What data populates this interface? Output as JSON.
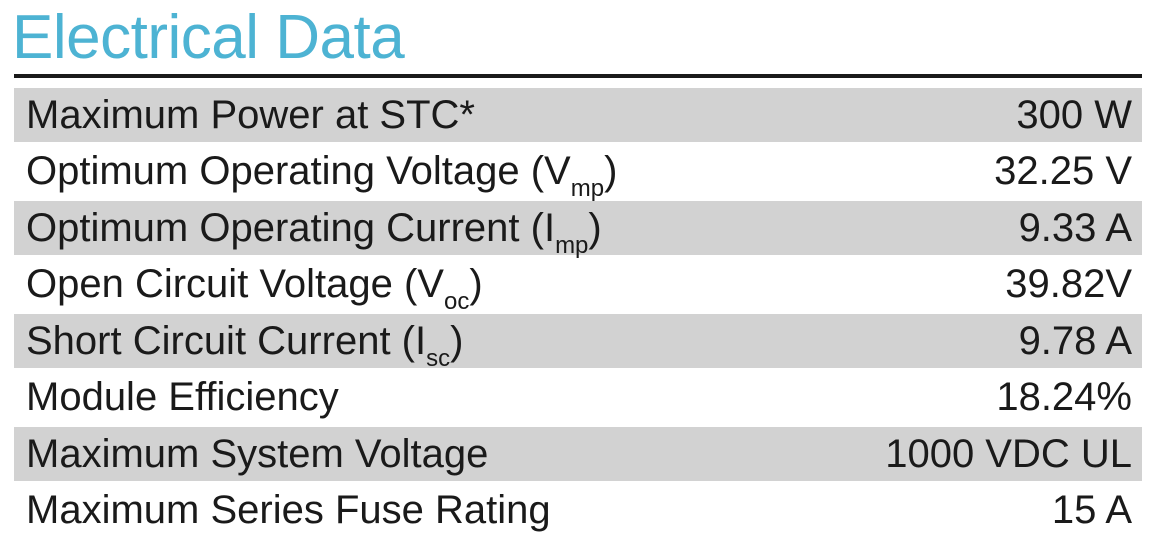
{
  "title": "Electrical Data",
  "rows": [
    {
      "label": "Maximum Power at STC*",
      "sub": "",
      "suffix": "",
      "value": "300 W",
      "shaded": true
    },
    {
      "label": "Optimum Operating Voltage (V",
      "sub": "mp",
      "suffix": ")",
      "value": "32.25 V",
      "shaded": false
    },
    {
      "label": "Optimum Operating Current (I",
      "sub": "mp",
      "suffix": ")",
      "value": "9.33 A",
      "shaded": true
    },
    {
      "label": "Open Circuit Voltage (V",
      "sub": "oc",
      "suffix": ")",
      "value": "39.82V",
      "shaded": false
    },
    {
      "label": "Short Circuit Current (I",
      "sub": "sc",
      "suffix": ")",
      "value": "9.78 A",
      "shaded": true
    },
    {
      "label": "Module Efficiency",
      "sub": "",
      "suffix": "",
      "value": "18.24%",
      "shaded": false
    },
    {
      "label": "Maximum System Voltage",
      "sub": "",
      "suffix": "",
      "value": "1000 VDC UL",
      "shaded": true
    },
    {
      "label": "Maximum Series Fuse Rating",
      "sub": "",
      "suffix": "",
      "value": "15 A",
      "shaded": false
    }
  ],
  "colors": {
    "title": "#4db3d3",
    "row_shade": "#d2d2d2",
    "rule": "#1a1a1a",
    "text": "#1a1a1a"
  }
}
